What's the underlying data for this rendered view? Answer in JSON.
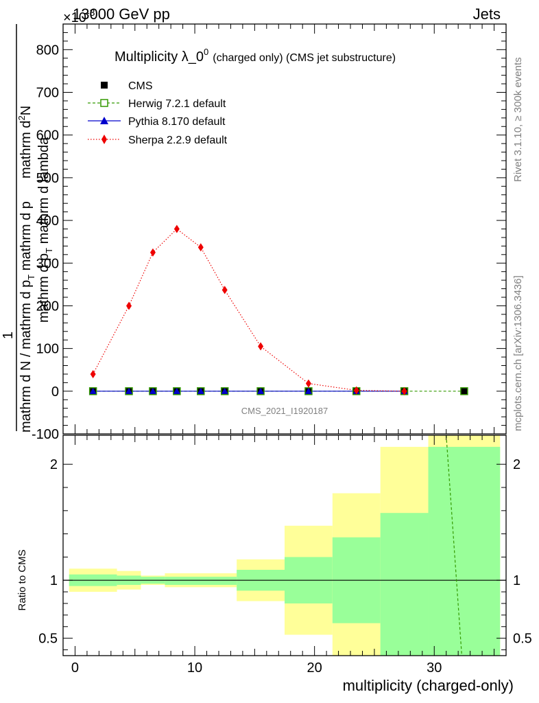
{
  "header": {
    "energy_label": "13000 GeV pp",
    "exponent_label": "×10",
    "exponent_power": "-3",
    "process_label": "Jets",
    "right_label_top": "Rivet 3.1.10, ≥ 300k events",
    "right_label_bottom": "mcplots.cern.ch [arXiv:1306.3436]"
  },
  "chart_data": [
    {
      "type": "line",
      "title": "Multiplicity λ_0",
      "title_superscript": "0",
      "title_suffix": "(charged only) (CMS jet substructure)",
      "ylabel": "1 / (mathrm d N / mathrm d p_T mathrm d p_T mathrm d lambda) · mathrm d²N",
      "ylabel_line_numerator_top": "mathrm d",
      "ylabel_sup_2": "2",
      "ylabel_line_numerator_bottom": "N",
      "ylabel_line_denominator": "mathrm d p",
      "ylabel_sub_T": "T",
      "ylabel_line_denominator_tail": " mathrm d lambda",
      "ylabel_one": "1",
      "ylabel_bottom": "mathrm d N / mathrm d p",
      "ylabel_bottom_tail": " mathrm d p",
      "ylim": [
        -100,
        860
      ],
      "yticks": [
        "-100",
        "0",
        "100",
        "200",
        "300",
        "400",
        "500",
        "600",
        "700",
        "800"
      ],
      "ytick_values": [
        -100,
        0,
        100,
        200,
        300,
        400,
        500,
        600,
        700,
        800
      ],
      "xlim": [
        -1,
        36
      ],
      "watermark": "CMS_2021_I1920187",
      "legend_position": "top-left",
      "series": [
        {
          "name": "CMS",
          "color": "#000000",
          "marker": "square-filled",
          "x": [
            1.5,
            4.5,
            6.5,
            8.5,
            10.5,
            12.5,
            15.5,
            19.5,
            23.5,
            27.5,
            32.5
          ],
          "values": [
            0,
            0,
            0,
            0,
            0,
            0,
            0,
            0,
            0,
            0,
            0
          ]
        },
        {
          "name": "Herwig 7.2.1 default",
          "color": "#339900",
          "marker": "square-open",
          "line": "dashed",
          "x": [
            1.5,
            4.5,
            6.5,
            8.5,
            10.5,
            12.5,
            15.5,
            19.5,
            23.5,
            27.5,
            32.5
          ],
          "values": [
            0,
            0,
            0,
            0,
            0,
            0,
            0,
            0,
            0,
            0,
            0
          ]
        },
        {
          "name": "Pythia 8.170 default",
          "color": "#0000cc",
          "marker": "triangle-filled",
          "line": "solid",
          "x": [
            1.5,
            4.5,
            6.5,
            8.5,
            10.5,
            12.5,
            15.5,
            19.5,
            23.5,
            27.5
          ],
          "values": [
            0,
            0,
            0,
            0,
            0,
            0,
            0,
            0,
            0,
            0
          ]
        },
        {
          "name": "Sherpa 2.2.9 default",
          "color": "#ee0000",
          "marker": "diamond-filled",
          "line": "dotted",
          "x": [
            1.5,
            4.5,
            6.5,
            8.5,
            10.5,
            12.5,
            15.5,
            19.5,
            23.5,
            27.5
          ],
          "values": [
            40,
            200,
            325,
            380,
            337,
            237,
            105,
            18,
            2,
            0
          ]
        }
      ]
    },
    {
      "type": "area",
      "ylabel": "Ratio to CMS",
      "xlabel": "multiplicity (charged-only)",
      "xlim": [
        -1,
        36
      ],
      "ylim": [
        0.35,
        2.25
      ],
      "xticks": [
        "0",
        "10",
        "20",
        "30"
      ],
      "xtick_values": [
        0,
        10,
        20,
        30
      ],
      "yticks": [
        "0.5",
        "1",
        "2"
      ],
      "ytick_values": [
        0.5,
        1,
        2
      ],
      "bins": [
        {
          "lo": -0.5,
          "hi": 3.5,
          "inner": [
            0.95,
            1.05
          ],
          "outer": [
            0.9,
            1.1
          ]
        },
        {
          "lo": 3.5,
          "hi": 5.5,
          "inner": [
            0.96,
            1.04
          ],
          "outer": [
            0.92,
            1.08
          ]
        },
        {
          "lo": 5.5,
          "hi": 7.5,
          "inner": [
            0.97,
            1.03
          ],
          "outer": [
            0.96,
            1.04
          ]
        },
        {
          "lo": 7.5,
          "hi": 13.5,
          "inner": [
            0.96,
            1.03
          ],
          "outer": [
            0.94,
            1.06
          ]
        },
        {
          "lo": 13.5,
          "hi": 17.5,
          "inner": [
            0.91,
            1.09
          ],
          "outer": [
            0.82,
            1.18
          ]
        },
        {
          "lo": 17.5,
          "hi": 21.5,
          "inner": [
            0.8,
            1.2
          ],
          "outer": [
            0.53,
            1.47
          ]
        },
        {
          "lo": 21.5,
          "hi": 25.5,
          "inner": [
            0.63,
            1.37
          ],
          "outer": [
            0.35,
            1.75
          ]
        },
        {
          "lo": 25.5,
          "hi": 29.5,
          "inner": [
            0.35,
            1.58
          ],
          "outer": [
            0.35,
            2.15
          ]
        },
        {
          "lo": 29.5,
          "hi": 35.5,
          "inner": [
            0.35,
            2.15
          ],
          "outer": [
            0.35,
            2.25
          ]
        }
      ],
      "reference_line": 1,
      "herwig_ratio_line": {
        "x": [
          31,
          32.3
        ],
        "values": [
          2.25,
          0.35
        ],
        "color": "#339900"
      }
    }
  ],
  "colors": {
    "band_inner": "#99ff99",
    "band_outer": "#ffff99"
  }
}
